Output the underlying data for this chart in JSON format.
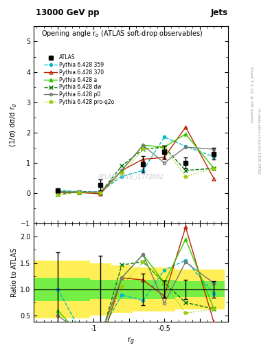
{
  "title_top": "13000 GeV pp",
  "title_right": "Jets",
  "plot_title": "Opening angle r$_g$ (ATLAS soft-drop observables)",
  "watermark": "ATLAS_2019_I1772062",
  "right_label": "Rivet 3.1.10, ≥ 3M events",
  "right_label2": "mcplots.cern.ch [arXiv:1306.3436]",
  "xlabel": "r$_g$",
  "ylabel_main": "(1/σ) dσ/d r$_g$",
  "ylabel_ratio": "Ratio to ATLAS",
  "xvals": [
    -1.25,
    -1.1,
    -0.95,
    -0.8,
    -0.65,
    -0.5,
    -0.35,
    -0.15
  ],
  "atlas_y": [
    0.1,
    null,
    0.28,
    null,
    0.95,
    1.35,
    1.0,
    1.3
  ],
  "atlas_yerr": [
    0.07,
    null,
    0.18,
    null,
    0.28,
    0.22,
    0.18,
    0.2
  ],
  "p359_y": [
    0.1,
    0.05,
    0.05,
    0.55,
    0.75,
    1.85,
    1.55,
    1.2
  ],
  "p370_y": [
    0.02,
    0.02,
    -0.02,
    0.75,
    1.12,
    1.18,
    2.18,
    0.48
  ],
  "pa_y": [
    0.06,
    0.03,
    0.03,
    0.75,
    1.58,
    1.52,
    1.95,
    0.82
  ],
  "pdw_y": [
    -0.05,
    0.05,
    0.02,
    0.9,
    1.45,
    1.52,
    0.75,
    0.82
  ],
  "pp0_y": [
    0.05,
    0.04,
    0.04,
    0.75,
    1.58,
    1.0,
    1.52,
    1.45
  ],
  "pproq2o_y": [
    -0.05,
    0.03,
    0.02,
    0.65,
    1.45,
    1.52,
    0.55,
    0.82
  ],
  "ylim_main": [
    -1.0,
    5.5
  ],
  "ylim_ratio": [
    0.38,
    2.25
  ],
  "band_x_edges": [
    -1.42,
    -1.175,
    -1.025,
    -0.875,
    -0.725,
    -0.575,
    -0.425,
    -0.275,
    -0.075
  ],
  "band_yellow_half": [
    0.55,
    0.55,
    0.5,
    0.45,
    0.42,
    0.42,
    0.38,
    0.38
  ],
  "band_green_half": [
    0.22,
    0.22,
    0.18,
    0.18,
    0.18,
    0.18,
    0.15,
    0.15
  ],
  "colors": {
    "atlas": "#000000",
    "p359": "#00BBCC",
    "p370": "#BB2200",
    "pa": "#33CC00",
    "pdw": "#007700",
    "pp0": "#777777",
    "pproq2o": "#99CC00"
  }
}
